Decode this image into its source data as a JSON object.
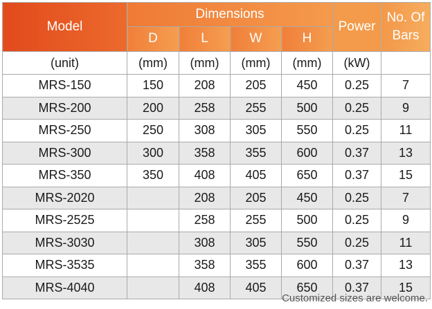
{
  "headers": {
    "model": "Model",
    "dimensions": "Dimensions",
    "power": "Power",
    "bars_line1": "No. Of",
    "bars_line2": "Bars",
    "d": "D",
    "l": "L",
    "w": "W",
    "h": "H"
  },
  "units": [
    "(unit)",
    "(mm)",
    "(mm)",
    "(mm)",
    "(mm)",
    "(kW)",
    ""
  ],
  "rows": [
    [
      "MRS-150",
      "150",
      "208",
      "205",
      "450",
      "0.25",
      "7"
    ],
    [
      "MRS-200",
      "200",
      "258",
      "255",
      "500",
      "0.25",
      "9"
    ],
    [
      "MRS-250",
      "250",
      "308",
      "305",
      "550",
      "0.25",
      "11"
    ],
    [
      "MRS-300",
      "300",
      "358",
      "355",
      "600",
      "0.37",
      "13"
    ],
    [
      "MRS-350",
      "350",
      "408",
      "405",
      "650",
      "0.37",
      "15"
    ],
    [
      "MRS-2020",
      "",
      "208",
      "205",
      "450",
      "0.25",
      "7"
    ],
    [
      "MRS-2525",
      "",
      "258",
      "255",
      "500",
      "0.25",
      "9"
    ],
    [
      "MRS-3030",
      "",
      "308",
      "305",
      "550",
      "0.25",
      "11"
    ],
    [
      "MRS-3535",
      "",
      "358",
      "355",
      "600",
      "0.37",
      "13"
    ],
    [
      "MRS-4040",
      "",
      "408",
      "405",
      "650",
      "0.37",
      "15"
    ]
  ],
  "footer_note": "Customized sizes are welcome.",
  "colors": {
    "header_orange_dark": "#e24a1c",
    "header_orange_light": "#f59a4c",
    "alt_row_gray": "#e8e8e8"
  }
}
